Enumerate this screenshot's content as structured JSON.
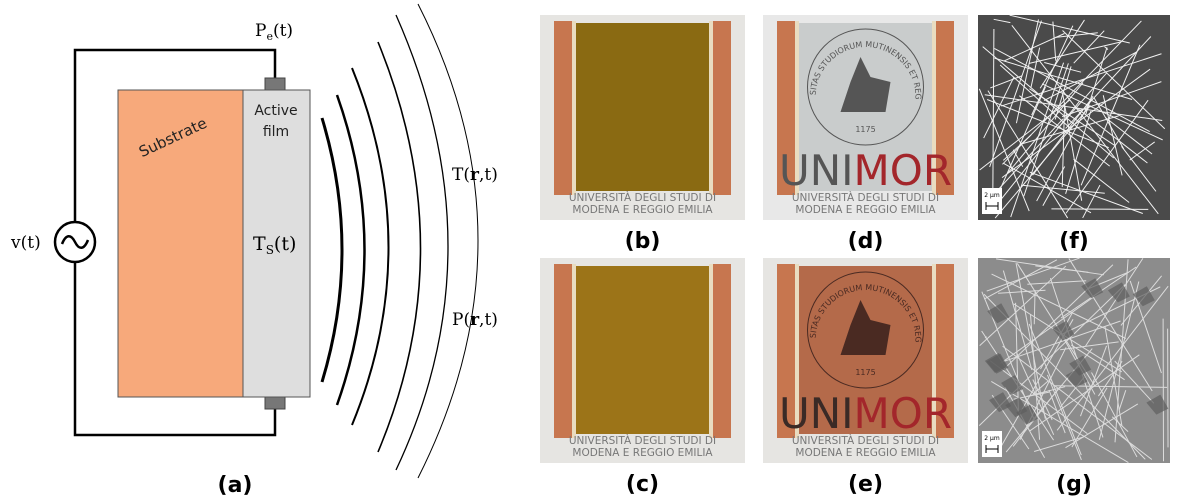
{
  "diagram": {
    "power_label": {
      "symbol": "P",
      "sub": "e",
      "arg": "(t)"
    },
    "substrate": "Substrate",
    "active_film": [
      "Active",
      "film"
    ],
    "temperature_label": {
      "symbol": "T",
      "sub": "S",
      "arg": "(t)"
    },
    "source": "v(t)",
    "field_T": {
      "pre": "T(",
      "bold": "r",
      "post": ",t)"
    },
    "field_P": {
      "pre": "P(",
      "bold": "r",
      "post": ",t)"
    },
    "caption": "(a)"
  },
  "photos": [
    {
      "caption": "(b)",
      "lines": [
        "UNIVERSITÀ DEGLI STUDI DI",
        "MODENA E REGGIO EMILIA"
      ]
    },
    {
      "caption": "(c)",
      "lines": [
        "UNIVERSITÀ DEGLI STUDI DI",
        "MODENA E REGGIO EMILIA"
      ]
    },
    {
      "caption": "(d)",
      "lines": [
        "UNIVERSITÀ DEGLI STUDI DI",
        "MODENA E REGGIO EMILIA"
      ],
      "seal": "UNIVERSITAS STUDIORUM MUTINENSIS ET REGIENSIS",
      "year": "1175",
      "logo": [
        "UNI",
        "MOR"
      ]
    },
    {
      "caption": "(e)",
      "lines": [
        "UNIVERSITÀ DEGLI STUDI DI",
        "MODENA E REGGIO EMILIA"
      ],
      "seal": "UNIVERSITAS STUDIORUM MUTINENSIS ET REGIENSIS",
      "year": "1175",
      "logo": [
        "UNI",
        "MOR"
      ]
    }
  ],
  "micrographs": [
    {
      "caption": "(f)",
      "scale": "2 µm"
    },
    {
      "caption": "(g)",
      "scale": "2 µm"
    }
  ]
}
